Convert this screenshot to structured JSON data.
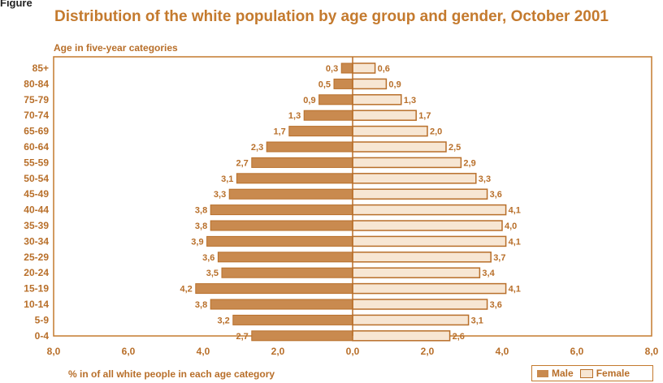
{
  "figure": {
    "label": "Figure",
    "title": "Distribution of the white population by age group and gender, October 2001",
    "subtitle": "Age in five-year categories",
    "xlabel": "% in of all white people in each age category"
  },
  "legend": {
    "male_label": "Male",
    "female_label": "Female"
  },
  "colors": {
    "accent": "#c47a2e",
    "male_fill": "#c98a4f",
    "female_fill": "#f7e6d3",
    "bar_stroke": "#b86f2a"
  },
  "chart_data": {
    "type": "bar",
    "orientation": "horizontal-population-pyramid",
    "title": "Distribution of the white population by age group and gender, October 2001",
    "ylabel": "Age in five-year categories",
    "xlabel": "% in of all white people in each age category",
    "xlim": [
      -8.0,
      8.0
    ],
    "x_ticks": [
      "8,0",
      "6,0",
      "4,0",
      "2,0",
      "0,0",
      "2,0",
      "4,0",
      "6,0",
      "8,0"
    ],
    "categories": [
      "85+",
      "80-84",
      "75-79",
      "70-74",
      "65-69",
      "60-64",
      "55-59",
      "50-54",
      "45-49",
      "40-44",
      "35-39",
      "30-34",
      "25-29",
      "20-24",
      "15-19",
      "10-14",
      "5-9",
      "0-4"
    ],
    "series": [
      {
        "name": "Male",
        "values": [
          0.3,
          0.5,
          0.9,
          1.3,
          1.7,
          2.3,
          2.7,
          3.1,
          3.3,
          3.8,
          3.8,
          3.9,
          3.6,
          3.5,
          4.2,
          3.8,
          3.2,
          2.7
        ],
        "labels": [
          "0,3",
          "0,5",
          "0,9",
          "1,3",
          "1,7",
          "2,3",
          "2,7",
          "3,1",
          "3,3",
          "3,8",
          "3,8",
          "3,9",
          "3,6",
          "3,5",
          "4,2",
          "3,8",
          "3,2",
          "2,7"
        ]
      },
      {
        "name": "Female",
        "values": [
          0.6,
          0.9,
          1.3,
          1.7,
          2.0,
          2.5,
          2.9,
          3.3,
          3.6,
          4.1,
          4.0,
          4.1,
          3.7,
          3.4,
          4.1,
          3.6,
          3.1,
          2.6
        ],
        "labels": [
          "0,6",
          "0,9",
          "1,3",
          "1,7",
          "2,0",
          "2,5",
          "2,9",
          "3,3",
          "3,6",
          "4,1",
          "4,0",
          "4,1",
          "3,7",
          "3,4",
          "4,1",
          "3,6",
          "3,1",
          "2,6"
        ]
      }
    ],
    "grid": false,
    "legend_position": "bottom-right"
  }
}
